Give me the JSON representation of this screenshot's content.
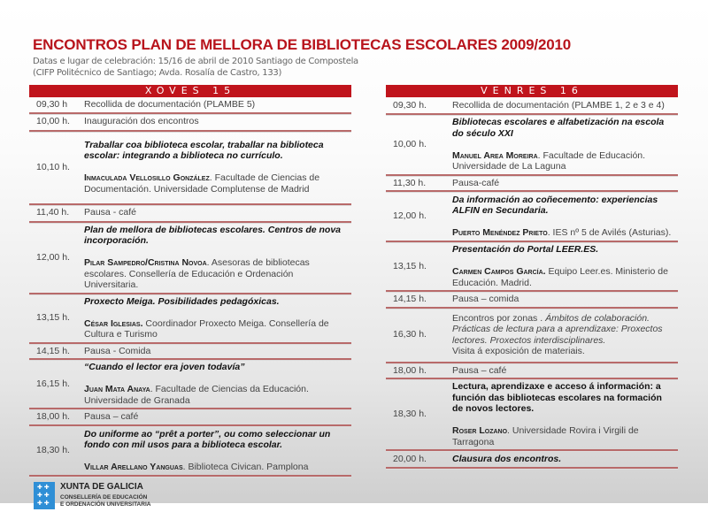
{
  "title": "ENCONTROS PLAN DE MELLORA DE BIBLIOTECAS ESCOLARES 2009/2010",
  "subtitle_1": "Datas e lugar de celebración:  15/16 de abril de 2010 Santiago de Compostela",
  "subtitle_2": "(CIFP Politécnico de Santiago; Avda. Rosalía de Castro, 133)",
  "days": [
    {
      "heading": "XOVES 15",
      "rows": [
        {
          "time": "09,30 h",
          "parts": [
            {
              "t": "Recollida de documentación (PLAMBE 5)",
              "s": ""
            }
          ]
        },
        {
          "time": "10,00 h.",
          "parts": [
            {
              "t": "Inauguración dos encontros",
              "s": ""
            }
          ]
        },
        {
          "time": "10,10 h.",
          "parts": [
            {
              "t": "Traballar coa biblioteca escolar, traballar na biblioteca escolar: integrando a biblioteca no currículo.",
              "s": "b"
            },
            {
              "t": "Inmaculada Vellosillo González",
              "s": "sc"
            },
            {
              "t": ". Facultade de Ciencias de Documentación. Universidade Complutense de Madrid",
              "s": "i0"
            }
          ]
        },
        {
          "time": "11,40 h.",
          "parts": [
            {
              "t": " Pausa - café",
              "s": ""
            }
          ]
        },
        {
          "time": "12,00 h.",
          "parts": [
            {
              "t": "Plan de mellora de bibliotecas escolares. Centros de nova incorporación.",
              "s": "b"
            },
            {
              "t": "Pilar Sampedro/Cristina Novoa",
              "s": "sc"
            },
            {
              "t": ". Asesoras de bibliotecas escolares. Consellería de Educación e Ordenación Universitaria.",
              "s": "i0"
            }
          ]
        },
        {
          "time": "13,15 h.",
          "parts": [
            {
              "t": "Proxecto Meiga. Posibilidades pedagóxicas.",
              "s": "b"
            },
            {
              "t": "César Iglesias.",
              "s": "sc"
            },
            {
              "t": " Coordinador Proxecto Meiga. Consellería de Cultura e Turismo",
              "s": "i0"
            }
          ]
        },
        {
          "time": "14,15 h.",
          "parts": [
            {
              "t": "Pausa - Comida",
              "s": ""
            }
          ]
        },
        {
          "time": "16,15 h.",
          "parts": [
            {
              "t": "“Cuando el lector era joven todavía”",
              "s": "b"
            },
            {
              "t": "Juan Mata Anaya",
              "s": "sc"
            },
            {
              "t": ".  Facultade de Ciencias da Educación. Universidade de Granada",
              "s": "i0"
            }
          ]
        },
        {
          "time": "18,00 h.",
          "parts": [
            {
              "t": "Pausa – café",
              "s": ""
            }
          ]
        },
        {
          "time": "18,30 h.",
          "parts": [
            {
              "t": "Do uniforme ao “prêt a porter”, ou como seleccionar un fondo con mil usos para a biblioteca escolar.",
              "s": "b"
            },
            {
              "t": "Villar Arellano Yanguas",
              "s": "sc"
            },
            {
              "t": ". Biblioteca Civican. Pamplona",
              "s": "i0"
            }
          ]
        }
      ]
    },
    {
      "heading": "VENRES 16",
      "rows": [
        {
          "time": "09,30 h.",
          "parts": [
            {
              "t": "Recollida de documentación (PLAMBE 1, 2 e 3 e 4)",
              "s": ""
            }
          ]
        },
        {
          "time": "10,00 h.",
          "parts": [
            {
              "t": "Bibliotecas escolares e alfabetización na escola do século XXI",
              "s": "b"
            },
            {
              "t": "Manuel Area Moreira",
              "s": "sc"
            },
            {
              "t": ". Facultade de Educación. Universidade de La Laguna",
              "s": "i0"
            }
          ]
        },
        {
          "time": "11,30 h.",
          "parts": [
            {
              "t": "Pausa-café",
              "s": ""
            }
          ]
        },
        {
          "time": "12,00 h.",
          "parts": [
            {
              "t": "Da información ao coñecemento: experiencias ALFIN en Secundaria.",
              "s": "b"
            },
            {
              "t": "Puerto Menéndez Prieto",
              "s": "sc"
            },
            {
              "t": ". IES nº 5 de Avilés (Asturias).",
              "s": "i0"
            }
          ]
        },
        {
          "time": "13,15 h.",
          "parts": [
            {
              "t": "Presentación do Portal LEER.ES.",
              "s": "b"
            },
            {
              "t": "Carmen Campos García.",
              "s": "sc"
            },
            {
              "t": "  Equipo Leer.es. Ministerio de Educación. Madrid.",
              "s": "i0"
            }
          ]
        },
        {
          "time": "14,15 h.",
          "parts": [
            {
              "t": "Pausa – comida",
              "s": ""
            }
          ]
        },
        {
          "time": "16,30 h.",
          "parts": [
            {
              "t": "Encontros por zonas . ",
              "s": ""
            },
            {
              "t": "Ámbitos de colaboración. Prácticas de lectura para a aprendizaxe: Proxectos lectores. Proxectos interdisciplinares.",
              "s": "i"
            },
            {
              "t": "Visita á exposición de materiais.",
              "s": "br"
            }
          ]
        },
        {
          "time": "18,00 h.",
          "parts": [
            {
              "t": "Pausa – café",
              "s": ""
            }
          ]
        },
        {
          "time": "18,30 h.",
          "parts": [
            {
              "t": "Lectura, aprendizaxe e acceso á información: a función das bibliotecas escolares na formación de novos lectores.",
              "s": "bn"
            },
            {
              "t": "Roser Lozano",
              "s": "sc"
            },
            {
              "t": ". Universidade Rovira i Virgili de Tarragona",
              "s": "i0"
            }
          ]
        },
        {
          "time": "20,00 h.",
          "parts": [
            {
              "t": "Clausura dos encontros.",
              "s": "b"
            }
          ]
        }
      ]
    }
  ],
  "logo": {
    "name": "XUNTA DE GALICIA",
    "line1": "CONSELLERÍA DE EDUCACIÓN",
    "line2": "E ORDENACIÓN UNIVERSITARIA",
    "color": "#2f8fd6"
  },
  "accent_color": "#c0141c"
}
